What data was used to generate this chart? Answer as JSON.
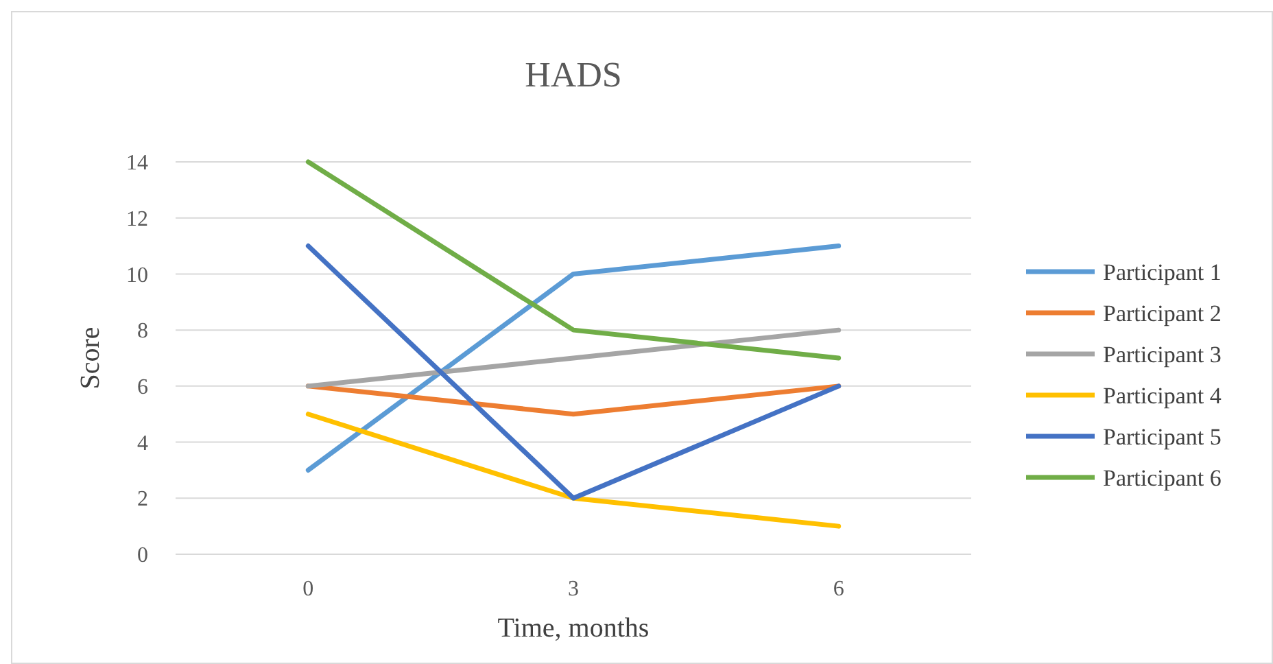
{
  "chart_data": {
    "type": "line",
    "title": "HADS",
    "xlabel": "Time, months",
    "ylabel": "Score",
    "categories": [
      "0",
      "3",
      "6"
    ],
    "ylim": [
      0,
      14
    ],
    "yticks": [
      0,
      2,
      4,
      6,
      8,
      10,
      12,
      14
    ],
    "grid": "y",
    "legend": "right",
    "marker": "none",
    "line_style": "solid",
    "series": [
      {
        "name": "Participant 1",
        "color": "#5b9bd5",
        "values": [
          3,
          10,
          11
        ]
      },
      {
        "name": "Participant 2",
        "color": "#ed7d31",
        "values": [
          6,
          5,
          6
        ]
      },
      {
        "name": "Participant 3",
        "color": "#a5a5a5",
        "values": [
          6,
          7,
          8
        ]
      },
      {
        "name": "Participant 4",
        "color": "#ffc000",
        "values": [
          5,
          2,
          1
        ]
      },
      {
        "name": "Participant 5",
        "color": "#4472c4",
        "values": [
          11,
          2,
          6
        ]
      },
      {
        "name": "Participant 6",
        "color": "#70ad47",
        "values": [
          14,
          8,
          7
        ]
      }
    ]
  }
}
